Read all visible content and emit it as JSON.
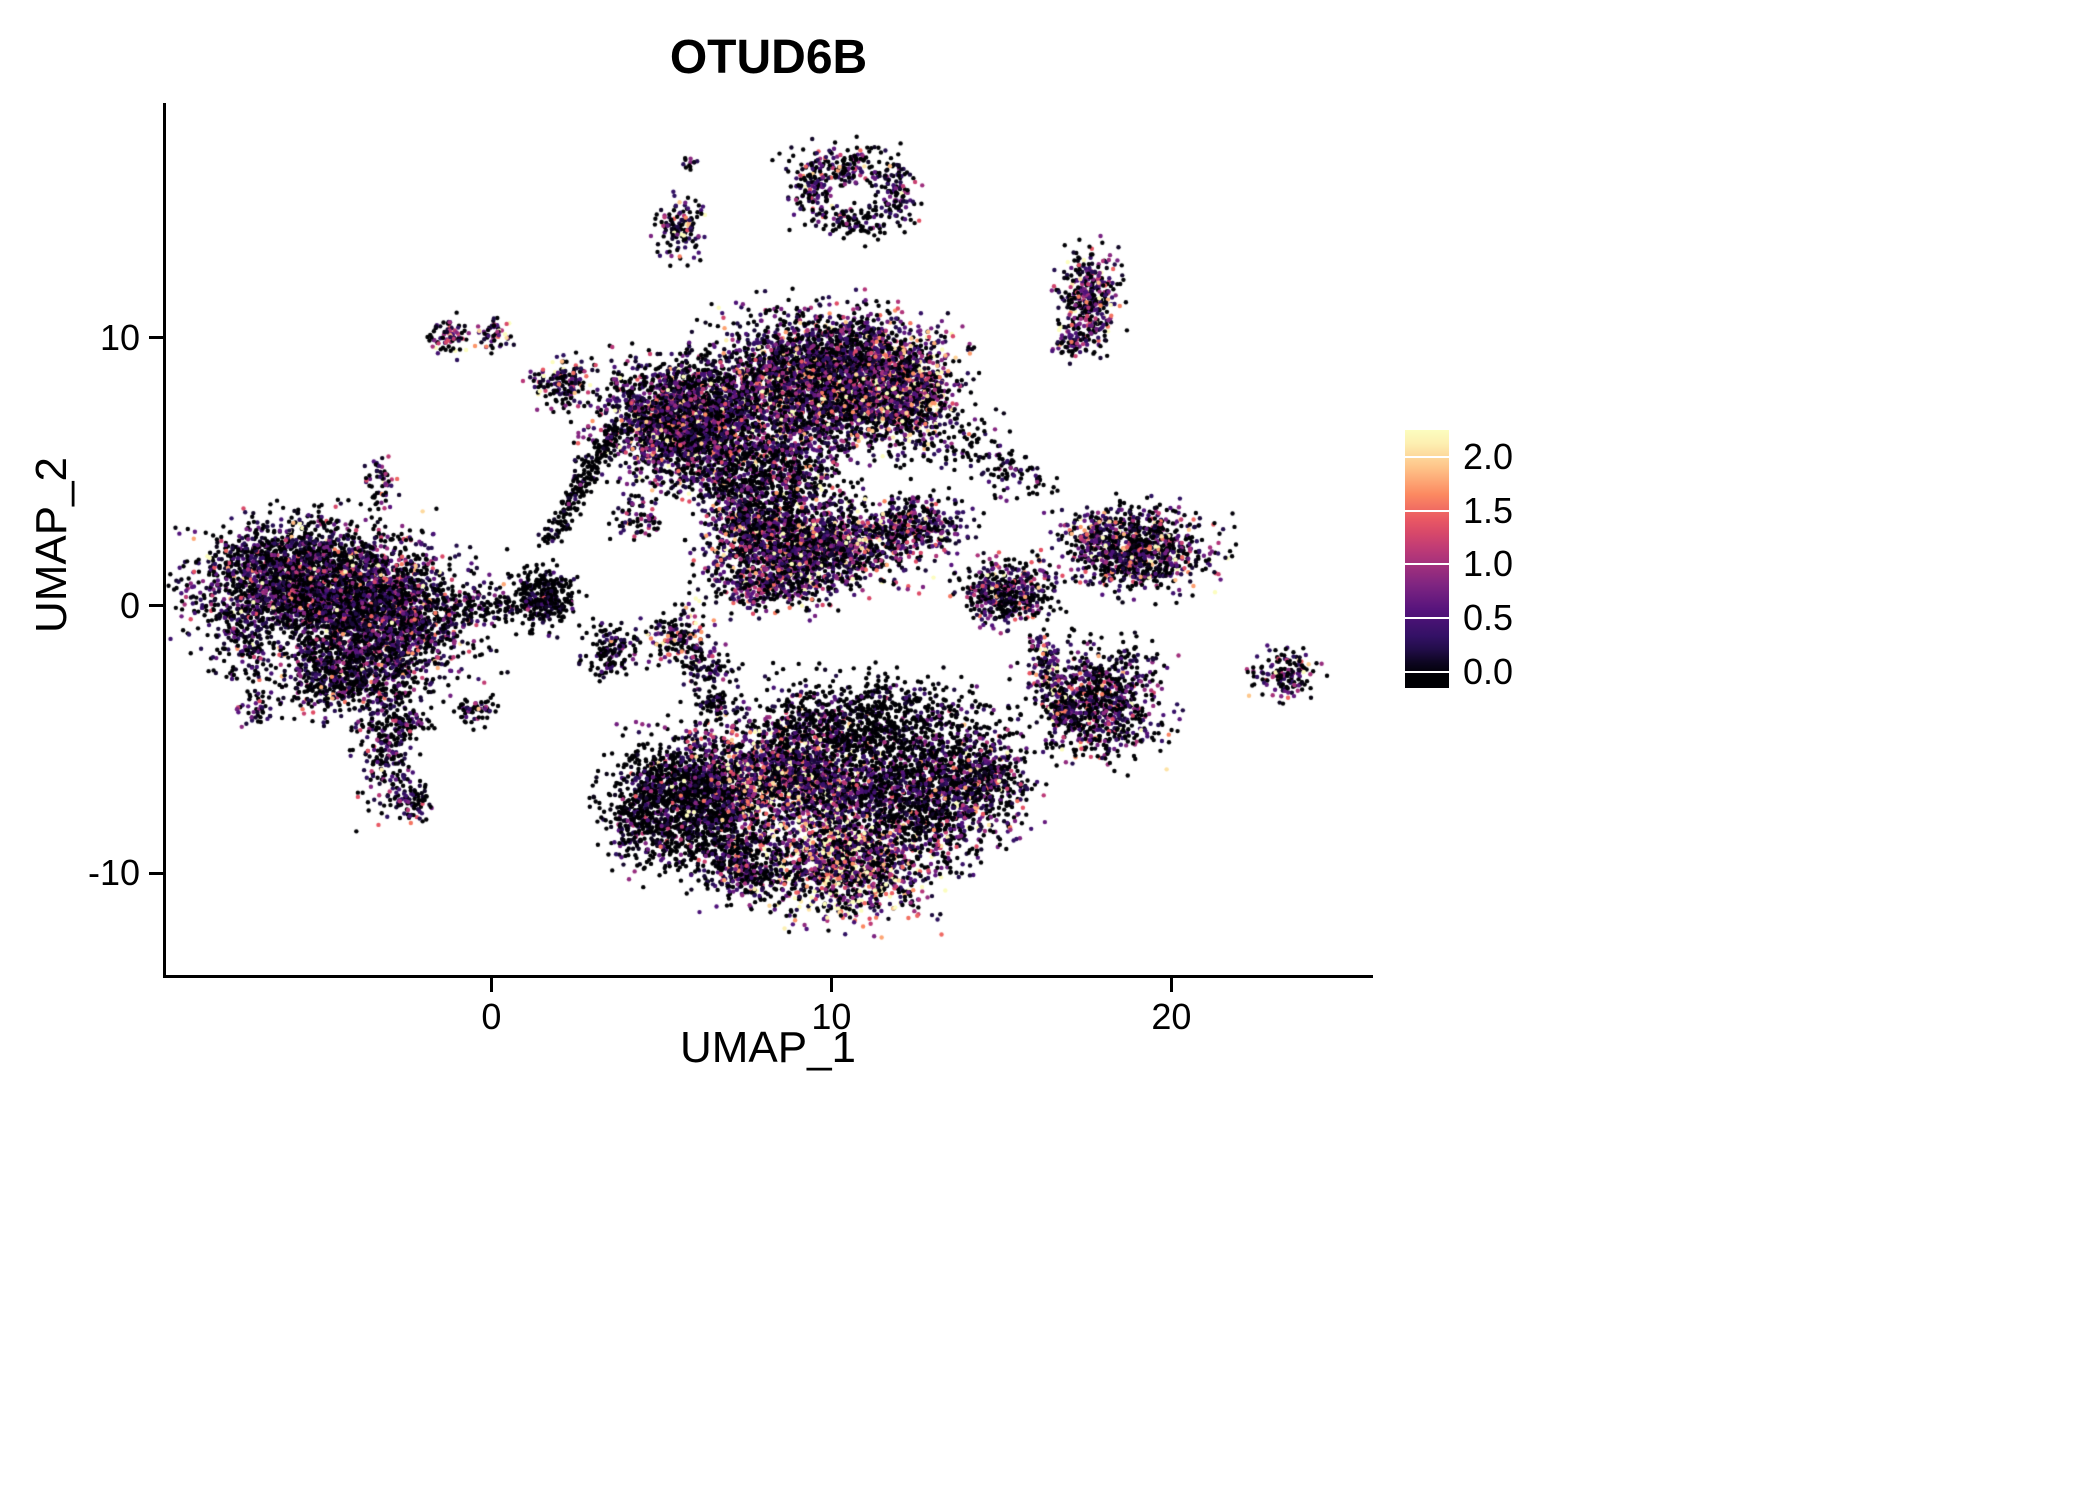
{
  "title": "OTUD6B",
  "colors": {
    "background": "#ffffff",
    "axis_color": "#000000",
    "text_color": "#000000"
  },
  "chart_data": {
    "type": "scatter",
    "variant": "umap-feature-plot",
    "title": "OTUD6B",
    "xlabel": "UMAP_1",
    "ylabel": "UMAP_2",
    "xlim": [
      -9.6,
      25.9
    ],
    "ylim": [
      -13.8,
      18.7
    ],
    "x_ticks": [
      0,
      10,
      20
    ],
    "x_tick_labels": [
      "0",
      "10",
      "20"
    ],
    "y_ticks": [
      -10,
      0,
      10
    ],
    "y_tick_labels": [
      "-10",
      "0",
      "10"
    ],
    "grid": false,
    "legend_position": "right",
    "point_radius_px": 2.2,
    "seed": 42,
    "colorbar": {
      "scale_max": 2.2,
      "vmin": -0.15,
      "vmax": 2.25,
      "ticks": [
        0.0,
        0.5,
        1.0,
        1.5,
        2.0
      ],
      "tick_labels": [
        "0.0",
        "0.5",
        "1.0",
        "1.5",
        "2.0"
      ]
    },
    "colormap": {
      "name": "magma",
      "stops": [
        [
          0.0,
          "#000004"
        ],
        [
          0.125,
          "#2c115f"
        ],
        [
          0.25,
          "#51127c"
        ],
        [
          0.375,
          "#822681"
        ],
        [
          0.5,
          "#b73779"
        ],
        [
          0.625,
          "#e55064"
        ],
        [
          0.75,
          "#fc8961"
        ],
        [
          0.875,
          "#fec98d"
        ],
        [
          1.0,
          "#fcfdbf"
        ]
      ]
    },
    "cluster_fields": [
      "x",
      "y",
      "sx",
      "sy",
      "n",
      "zero_frac",
      "expr_mean",
      "hi_frac"
    ],
    "clusters": [
      [
        -5.6,
        0.9,
        1.5,
        1.1,
        2600,
        0.45,
        0.55,
        0
      ],
      [
        -3.1,
        -0.5,
        1.3,
        1.2,
        2000,
        0.45,
        0.55,
        0
      ],
      [
        -4.5,
        -2.6,
        1.0,
        0.7,
        600,
        0.5,
        0.5,
        0
      ],
      [
        -3.1,
        -5.3,
        0.4,
        1.2,
        260,
        0.5,
        0.5,
        0
      ],
      [
        -2.3,
        -7.4,
        0.3,
        0.35,
        70,
        0.5,
        0.5,
        0
      ],
      [
        -6.9,
        -3.9,
        0.3,
        0.3,
        45,
        0.6,
        0.4,
        0
      ],
      [
        -7.4,
        -1.5,
        0.45,
        0.8,
        120,
        0.5,
        0.5,
        0
      ],
      [
        5.7,
        6.9,
        1.2,
        1.1,
        2400,
        0.4,
        0.6,
        0
      ],
      [
        9.9,
        8.5,
        1.6,
        1.2,
        3400,
        0.38,
        0.65,
        0
      ],
      [
        12.2,
        8.0,
        0.7,
        1.0,
        700,
        0.3,
        0.9,
        0.02
      ],
      [
        8.3,
        5.2,
        1.1,
        1.0,
        700,
        0.5,
        0.6,
        0
      ],
      [
        8.8,
        3.7,
        0.8,
        1.0,
        350,
        0.5,
        0.7,
        0
      ],
      [
        6.9,
        4.3,
        0.5,
        0.8,
        220,
        0.45,
        0.6,
        0
      ],
      [
        4.3,
        3.3,
        0.4,
        0.4,
        70,
        0.5,
        0.5,
        0
      ],
      [
        9.7,
        2.2,
        1.5,
        0.75,
        1500,
        0.35,
        0.7,
        0.01
      ],
      [
        12.6,
        3.1,
        0.7,
        0.5,
        300,
        0.4,
        0.6,
        0
      ],
      [
        7.6,
        2.8,
        0.5,
        0.6,
        250,
        0.35,
        0.8,
        0.02
      ],
      [
        8.3,
        0.8,
        0.9,
        0.5,
        400,
        0.4,
        0.7,
        0
      ],
      [
        13.8,
        6.1,
        0.8,
        0.7,
        90,
        0.75,
        0.3,
        0
      ],
      [
        15.4,
        4.9,
        0.5,
        0.45,
        80,
        0.6,
        0.45,
        0
      ],
      [
        5.8,
        -7.4,
        1.1,
        1.2,
        1600,
        0.65,
        0.35,
        0
      ],
      [
        8.8,
        -6.3,
        1.4,
        1.1,
        2000,
        0.3,
        0.85,
        0.01
      ],
      [
        10.4,
        -9.6,
        1.2,
        1.0,
        1400,
        0.3,
        1.15,
        0.03
      ],
      [
        12.7,
        -7.0,
        1.3,
        1.2,
        1600,
        0.5,
        0.55,
        0
      ],
      [
        11.2,
        -4.3,
        1.7,
        0.8,
        800,
        0.72,
        0.3,
        0
      ],
      [
        14.6,
        -6.3,
        0.6,
        0.8,
        300,
        0.45,
        0.6,
        0
      ],
      [
        7.4,
        -9.7,
        0.6,
        0.7,
        350,
        0.55,
        0.5,
        0
      ],
      [
        19.0,
        2.1,
        1.05,
        0.75,
        950,
        0.4,
        0.65,
        0.01
      ],
      [
        17.6,
        2.7,
        0.3,
        0.4,
        80,
        0.3,
        1.1,
        0.05
      ],
      [
        17.8,
        -3.6,
        0.95,
        1.0,
        900,
        0.45,
        0.6,
        0
      ],
      [
        23.3,
        -2.6,
        0.5,
        0.45,
        150,
        0.4,
        0.7,
        0
      ],
      [
        15.2,
        0.5,
        0.65,
        0.6,
        500,
        0.45,
        0.6,
        0
      ],
      [
        17.6,
        11.4,
        0.45,
        0.9,
        380,
        0.35,
        0.75,
        0.01
      ],
      [
        17.0,
        9.9,
        0.25,
        0.3,
        60,
        0.4,
        0.6,
        0
      ],
      [
        10.3,
        16.4,
        0.8,
        0.45,
        180,
        0.5,
        0.6,
        0
      ],
      [
        11.9,
        15.4,
        0.35,
        0.7,
        120,
        0.45,
        0.6,
        0
      ],
      [
        9.5,
        15.3,
        0.35,
        0.55,
        90,
        0.5,
        0.55,
        0
      ],
      [
        10.7,
        14.3,
        0.55,
        0.35,
        90,
        0.55,
        0.5,
        0
      ],
      [
        5.5,
        14.1,
        0.35,
        0.55,
        130,
        0.45,
        0.65,
        0.02
      ],
      [
        5.9,
        16.6,
        0.15,
        0.15,
        12,
        0.5,
        0.5,
        0
      ],
      [
        -1.2,
        10.1,
        0.3,
        0.35,
        80,
        0.35,
        0.8,
        0
      ],
      [
        0.1,
        10.2,
        0.25,
        0.3,
        55,
        0.35,
        0.8,
        0
      ],
      [
        2.1,
        8.3,
        0.45,
        0.55,
        160,
        0.4,
        0.75,
        0.02
      ],
      [
        -3.3,
        4.5,
        0.22,
        0.5,
        60,
        0.45,
        0.6,
        0
      ],
      [
        1.5,
        0.3,
        0.5,
        0.55,
        350,
        0.7,
        0.3,
        0
      ],
      [
        -0.3,
        0.0,
        0.7,
        0.3,
        90,
        0.7,
        0.3,
        0
      ],
      [
        3.5,
        -1.6,
        0.45,
        0.5,
        140,
        0.6,
        0.45,
        0
      ],
      [
        5.5,
        -1.1,
        0.5,
        0.5,
        170,
        0.45,
        0.7,
        0.04
      ],
      [
        6.3,
        -2.3,
        0.4,
        0.4,
        90,
        0.55,
        0.5,
        0
      ],
      [
        6.6,
        -3.7,
        0.3,
        0.3,
        70,
        0.6,
        0.45,
        0
      ],
      [
        -0.5,
        -3.9,
        0.3,
        0.3,
        60,
        0.55,
        0.5,
        0
      ],
      [
        -2.4,
        -4.4,
        0.3,
        0.28,
        70,
        0.6,
        0.45,
        0
      ]
    ],
    "segment_fields": [
      "x1",
      "y1",
      "x2",
      "y2",
      "n",
      "jitter",
      "zero_frac",
      "expr_mean"
    ],
    "segments": [
      [
        3.6,
        6.6,
        1.7,
        2.4,
        220,
        0.18,
        0.75,
        0.25
      ],
      [
        16.0,
        -1.2,
        16.9,
        -4.3,
        160,
        0.2,
        0.35,
        0.8
      ],
      [
        4.8,
        -6.0,
        3.9,
        -9.0,
        200,
        0.35,
        0.6,
        0.4
      ]
    ]
  }
}
